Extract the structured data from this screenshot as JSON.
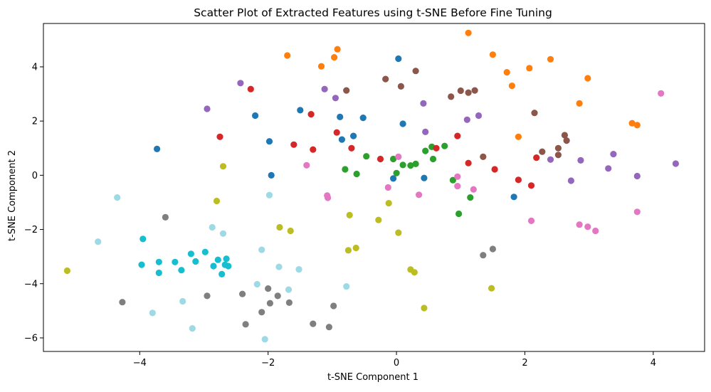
{
  "chart_data": {
    "type": "scatter",
    "title": "Scatter Plot of Extracted Features using t-SNE Before Fine Tuning",
    "xlabel": "t-SNE Component 1",
    "ylabel": "t-SNE Component 2",
    "xlim": [
      -5.5,
      4.8
    ],
    "ylim": [
      -6.5,
      5.6
    ],
    "xticks": [
      -4,
      -2,
      0,
      2,
      4
    ],
    "yticks": [
      -6,
      -4,
      -2,
      0,
      2,
      4
    ],
    "grid": false,
    "legend": false,
    "series": [
      {
        "color": "#1f77b4",
        "points": [
          [
            0.03,
            4.3
          ],
          [
            -2.2,
            2.2
          ],
          [
            -1.5,
            2.4
          ],
          [
            -0.88,
            2.15
          ],
          [
            -0.52,
            2.12
          ],
          [
            0.1,
            1.9
          ],
          [
            -3.73,
            0.97
          ],
          [
            -1.98,
            1.25
          ],
          [
            -0.67,
            1.45
          ],
          [
            -0.85,
            1.32
          ],
          [
            -1.95,
            0.0
          ],
          [
            -0.05,
            -0.12
          ],
          [
            0.43,
            -0.1
          ],
          [
            1.83,
            -0.8
          ]
        ]
      },
      {
        "color": "#ff7f0e",
        "points": [
          [
            1.12,
            5.25
          ],
          [
            -0.92,
            4.65
          ],
          [
            -0.97,
            4.35
          ],
          [
            -1.17,
            4.02
          ],
          [
            -1.7,
            4.42
          ],
          [
            1.5,
            4.45
          ],
          [
            1.72,
            3.8
          ],
          [
            2.07,
            3.95
          ],
          [
            2.4,
            4.28
          ],
          [
            1.8,
            3.3
          ],
          [
            2.98,
            3.58
          ],
          [
            2.85,
            2.65
          ],
          [
            3.67,
            1.92
          ],
          [
            3.75,
            1.85
          ],
          [
            1.9,
            1.42
          ]
        ]
      },
      {
        "color": "#2ca02c",
        "points": [
          [
            -0.47,
            0.7
          ],
          [
            -0.8,
            0.22
          ],
          [
            -0.62,
            0.05
          ],
          [
            -0.05,
            0.6
          ],
          [
            0.0,
            0.08
          ],
          [
            0.1,
            0.38
          ],
          [
            0.22,
            0.36
          ],
          [
            0.3,
            0.42
          ],
          [
            0.45,
            0.9
          ],
          [
            0.55,
            1.05
          ],
          [
            0.57,
            0.6
          ],
          [
            0.75,
            1.08
          ],
          [
            0.88,
            -0.18
          ],
          [
            1.15,
            -0.82
          ],
          [
            0.97,
            -1.42
          ]
        ]
      },
      {
        "color": "#d62728",
        "points": [
          [
            -2.27,
            3.18
          ],
          [
            -1.33,
            2.25
          ],
          [
            -0.93,
            1.58
          ],
          [
            -2.75,
            1.42
          ],
          [
            -1.6,
            1.13
          ],
          [
            -1.3,
            0.95
          ],
          [
            -0.7,
            1.0
          ],
          [
            -0.25,
            0.6
          ],
          [
            0.62,
            1.0
          ],
          [
            0.95,
            1.45
          ],
          [
            1.12,
            0.45
          ],
          [
            1.53,
            0.22
          ],
          [
            1.9,
            -0.17
          ],
          [
            2.1,
            -0.38
          ],
          [
            2.18,
            0.65
          ]
        ]
      },
      {
        "color": "#9467bd",
        "points": [
          [
            -2.43,
            3.4
          ],
          [
            -2.95,
            2.45
          ],
          [
            -1.12,
            3.18
          ],
          [
            -0.95,
            2.85
          ],
          [
            0.42,
            2.65
          ],
          [
            0.45,
            1.6
          ],
          [
            1.1,
            2.05
          ],
          [
            1.28,
            2.2
          ],
          [
            2.4,
            0.58
          ],
          [
            2.72,
            -0.2
          ],
          [
            2.87,
            0.55
          ],
          [
            3.3,
            0.25
          ],
          [
            3.38,
            0.78
          ],
          [
            3.75,
            -0.03
          ],
          [
            4.35,
            0.43
          ]
        ]
      },
      {
        "color": "#8c564b",
        "points": [
          [
            -0.17,
            3.55
          ],
          [
            0.07,
            3.28
          ],
          [
            0.3,
            3.85
          ],
          [
            -0.78,
            3.13
          ],
          [
            0.85,
            2.9
          ],
          [
            1.0,
            3.12
          ],
          [
            1.12,
            3.05
          ],
          [
            1.22,
            3.13
          ],
          [
            2.15,
            2.3
          ],
          [
            2.27,
            0.87
          ],
          [
            2.52,
            1.0
          ],
          [
            2.52,
            0.75
          ],
          [
            2.62,
            1.48
          ],
          [
            2.65,
            1.28
          ],
          [
            1.35,
            0.68
          ]
        ]
      },
      {
        "color": "#e377c2",
        "points": [
          [
            -1.4,
            0.37
          ],
          [
            0.03,
            0.68
          ],
          [
            -0.13,
            -0.45
          ],
          [
            -1.08,
            -0.75
          ],
          [
            -1.07,
            -0.83
          ],
          [
            0.35,
            -0.72
          ],
          [
            0.95,
            -0.05
          ],
          [
            0.95,
            -0.4
          ],
          [
            1.2,
            -0.52
          ],
          [
            2.1,
            -1.68
          ],
          [
            2.85,
            -1.82
          ],
          [
            2.98,
            -1.9
          ],
          [
            3.1,
            -2.05
          ],
          [
            3.75,
            -1.35
          ],
          [
            4.12,
            3.02
          ]
        ]
      },
      {
        "color": "#7f7f7f",
        "points": [
          [
            -3.6,
            -1.55
          ],
          [
            -4.27,
            -4.68
          ],
          [
            -2.95,
            -4.45
          ],
          [
            -2.4,
            -4.38
          ],
          [
            -2.35,
            -5.5
          ],
          [
            -2.1,
            -5.05
          ],
          [
            -2.0,
            -4.18
          ],
          [
            -1.97,
            -4.72
          ],
          [
            -1.85,
            -4.45
          ],
          [
            -1.67,
            -4.7
          ],
          [
            -1.3,
            -5.48
          ],
          [
            -1.05,
            -5.6
          ],
          [
            -0.98,
            -4.82
          ],
          [
            1.35,
            -2.95
          ],
          [
            1.5,
            -2.72
          ]
        ]
      },
      {
        "color": "#bcbd22",
        "points": [
          [
            -5.13,
            -3.52
          ],
          [
            -2.8,
            -0.95
          ],
          [
            -2.7,
            0.33
          ],
          [
            -1.82,
            -1.92
          ],
          [
            -1.65,
            -2.05
          ],
          [
            -0.73,
            -1.47
          ],
          [
            -0.75,
            -2.77
          ],
          [
            -0.63,
            -2.68
          ],
          [
            -0.28,
            -1.65
          ],
          [
            -0.12,
            -1.03
          ],
          [
            0.03,
            -2.12
          ],
          [
            0.22,
            -3.48
          ],
          [
            0.28,
            -3.58
          ],
          [
            0.43,
            -4.9
          ],
          [
            1.48,
            -4.17
          ]
        ]
      },
      {
        "color": "#17becf",
        "points": [
          [
            -3.95,
            -2.35
          ],
          [
            -3.97,
            -3.3
          ],
          [
            -3.7,
            -3.2
          ],
          [
            -3.7,
            -3.6
          ],
          [
            -3.45,
            -3.2
          ],
          [
            -3.35,
            -3.5
          ],
          [
            -3.2,
            -2.9
          ],
          [
            -3.13,
            -3.18
          ],
          [
            -2.98,
            -2.83
          ],
          [
            -2.85,
            -3.35
          ],
          [
            -2.78,
            -3.12
          ],
          [
            -2.72,
            -3.65
          ],
          [
            -2.67,
            -3.3
          ],
          [
            -2.65,
            -3.08
          ],
          [
            -2.62,
            -3.35
          ]
        ]
      },
      {
        "color": "#9edae5",
        "points": [
          [
            -4.35,
            -0.82
          ],
          [
            -4.65,
            -2.45
          ],
          [
            -3.8,
            -5.08
          ],
          [
            -3.33,
            -4.65
          ],
          [
            -3.18,
            -5.65
          ],
          [
            -2.87,
            -1.92
          ],
          [
            -2.7,
            -2.15
          ],
          [
            -2.17,
            -4.02
          ],
          [
            -2.1,
            -2.75
          ],
          [
            -2.05,
            -6.05
          ],
          [
            -1.98,
            -0.73
          ],
          [
            -1.83,
            -3.38
          ],
          [
            -1.68,
            -4.22
          ],
          [
            -1.52,
            -3.47
          ],
          [
            -0.78,
            -4.1
          ]
        ]
      }
    ]
  }
}
